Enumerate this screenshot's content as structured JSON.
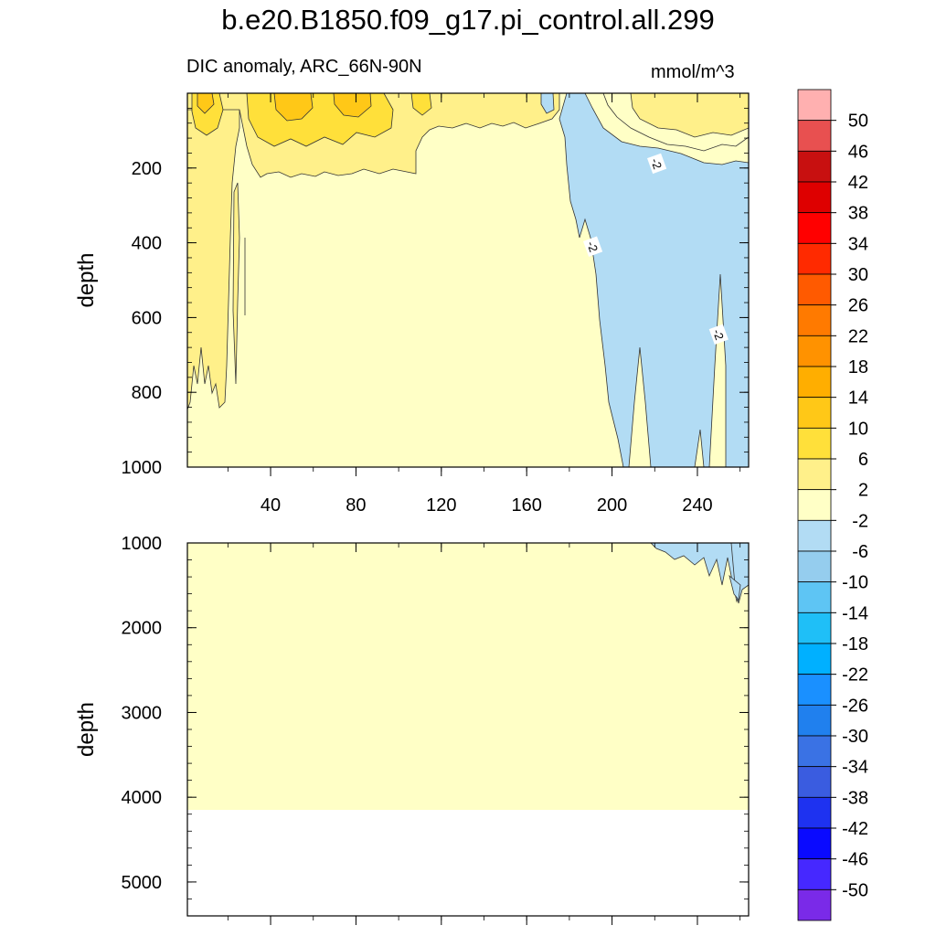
{
  "chart_data": {
    "type": "contour",
    "title": "b.e20.B1850.f09_g17.pi_control.all.299",
    "subtitle": "DIC anomaly, ARC_66N-90N",
    "units": "mmol/m^3",
    "x_ticks": [
      40,
      80,
      120,
      160,
      200,
      240
    ],
    "xlim": [
      1,
      264
    ],
    "panels": [
      {
        "name": "upper",
        "ylabel": "depth",
        "ylim": [
          0,
          1000
        ],
        "y_ticks": [
          200,
          400,
          600,
          800,
          1000
        ]
      },
      {
        "name": "lower",
        "ylabel": "depth",
        "ylim": [
          1000,
          5400
        ],
        "y_ticks": [
          1000,
          2000,
          3000,
          4000,
          5000
        ],
        "data_bottom_depth": 4120
      }
    ],
    "colorbar_levels": [
      50,
      46,
      42,
      38,
      34,
      30,
      26,
      22,
      18,
      14,
      10,
      6,
      2,
      -2,
      -6,
      -10,
      -14,
      -18,
      -22,
      -26,
      -30,
      -34,
      -38,
      -42,
      -46,
      -50
    ],
    "colorbar_colors": [
      "#ffb0b0",
      "#e85050",
      "#c81010",
      "#de0000",
      "#ff0000",
      "#ff2a00",
      "#ff5a00",
      "#ff7a00",
      "#ff9200",
      "#ffae00",
      "#ffc817",
      "#ffe03a",
      "#fff08a",
      "#ffffc6",
      "#b2dcf4",
      "#95cdee",
      "#5ec5f4",
      "#1fbff7",
      "#00b0ff",
      "#1a90ff",
      "#2080ee",
      "#3a72e4",
      "#3a5ce0",
      "#1e32f0",
      "#0a0aff",
      "#4628ff",
      "#7a2ae8"
    ],
    "contour_labels": [
      {
        "text": "-2",
        "x": 221,
        "depth": 188
      },
      {
        "text": "-2",
        "x": 191,
        "depth": 410
      },
      {
        "text": "-2",
        "x": 250,
        "depth": 645
      }
    ]
  }
}
